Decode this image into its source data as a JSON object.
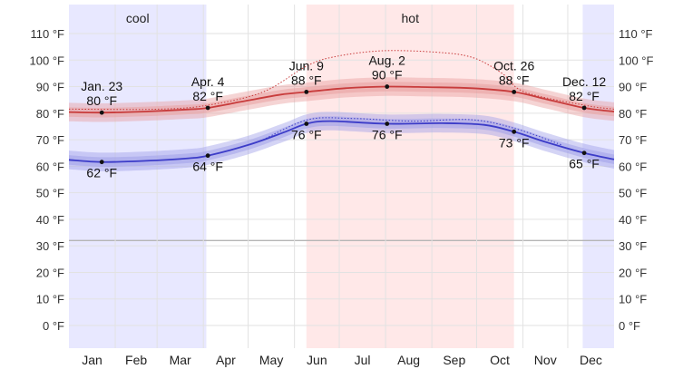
{
  "chart_data": {
    "type": "line",
    "title": "",
    "xlabel": "",
    "ylabel": "",
    "ylim": [
      -10,
      115
    ],
    "y_ticks": [
      0,
      10,
      20,
      30,
      40,
      50,
      60,
      70,
      80,
      90,
      100,
      110
    ],
    "y_unit": "°F",
    "freezing_line": 32,
    "months": [
      "Jan",
      "Feb",
      "Mar",
      "Apr",
      "May",
      "Jun",
      "Jul",
      "Aug",
      "Sep",
      "Oct",
      "Nov",
      "Dec"
    ],
    "grid": true,
    "seasons": [
      {
        "name": "cool",
        "start_day": 0,
        "end_day": 92,
        "color": "#e8e8ff"
      },
      {
        "name": "",
        "start_day": 344,
        "end_day": 365,
        "color": "#e8e8ff"
      },
      {
        "name": "hot",
        "start_day": 159,
        "end_day": 298,
        "color": "#ffe8e8"
      }
    ],
    "series": [
      {
        "name": "",
        "color": "#c83c3c",
        "band_color": "#e8a0a0",
        "points": [
          {
            "day": 0,
            "value": 80.4
          },
          {
            "day": 22,
            "value": 80.2
          },
          {
            "day": 50,
            "value": 80.6
          },
          {
            "day": 80,
            "value": 81.4
          },
          {
            "day": 93,
            "value": 82.0
          },
          {
            "day": 120,
            "value": 84.8
          },
          {
            "day": 142,
            "value": 87.0
          },
          {
            "day": 159,
            "value": 88.0
          },
          {
            "day": 185,
            "value": 89.4
          },
          {
            "day": 213,
            "value": 90.0
          },
          {
            "day": 240,
            "value": 89.8
          },
          {
            "day": 270,
            "value": 89.4
          },
          {
            "day": 298,
            "value": 88.0
          },
          {
            "day": 320,
            "value": 85.2
          },
          {
            "day": 345,
            "value": 82.0
          },
          {
            "day": 365,
            "value": 80.6
          }
        ]
      },
      {
        "name": "",
        "color": "#3c3cc8",
        "band_color": "#a0a0e8",
        "points": [
          {
            "day": 0,
            "value": 62.4
          },
          {
            "day": 22,
            "value": 61.6
          },
          {
            "day": 50,
            "value": 62.0
          },
          {
            "day": 80,
            "value": 63.0
          },
          {
            "day": 93,
            "value": 64.0
          },
          {
            "day": 120,
            "value": 68.0
          },
          {
            "day": 145,
            "value": 73.0
          },
          {
            "day": 159,
            "value": 76.0
          },
          {
            "day": 175,
            "value": 77.0
          },
          {
            "day": 213,
            "value": 76.0
          },
          {
            "day": 250,
            "value": 76.2
          },
          {
            "day": 278,
            "value": 75.6
          },
          {
            "day": 298,
            "value": 73.0
          },
          {
            "day": 320,
            "value": 69.0
          },
          {
            "day": 345,
            "value": 65.0
          },
          {
            "day": 365,
            "value": 62.6
          }
        ]
      }
    ],
    "reference_dotted": [
      {
        "name": "",
        "color": "#c83c3c",
        "points": [
          {
            "day": 0,
            "value": 81.5
          },
          {
            "day": 60,
            "value": 81.5
          },
          {
            "day": 93,
            "value": 83.0
          },
          {
            "day": 130,
            "value": 88.0
          },
          {
            "day": 160,
            "value": 98.0
          },
          {
            "day": 180,
            "value": 101.5
          },
          {
            "day": 210,
            "value": 103.5
          },
          {
            "day": 245,
            "value": 103.0
          },
          {
            "day": 270,
            "value": 101.0
          },
          {
            "day": 290,
            "value": 95.0
          },
          {
            "day": 305,
            "value": 88.0
          },
          {
            "day": 345,
            "value": 83.0
          },
          {
            "day": 365,
            "value": 81.5
          }
        ]
      },
      {
        "name": "",
        "color": "#3c3cc8",
        "points": [
          {
            "day": 130,
            "value": 70.0
          },
          {
            "day": 160,
            "value": 77.5
          },
          {
            "day": 190,
            "value": 78.0
          },
          {
            "day": 230,
            "value": 77.0
          },
          {
            "day": 270,
            "value": 77.5
          },
          {
            "day": 300,
            "value": 74.0
          },
          {
            "day": 330,
            "value": 68.0
          }
        ]
      }
    ],
    "annotations": [
      {
        "day": 22,
        "value": 80.2,
        "date": "Jan. 23",
        "label": "80 °F",
        "pos": "above",
        "color": "#c83c3c"
      },
      {
        "day": 93,
        "value": 82.0,
        "date": "Apr. 4",
        "label": "82 °F",
        "pos": "above",
        "color": "#c83c3c"
      },
      {
        "day": 159,
        "value": 88.0,
        "date": "Jun. 9",
        "label": "88 °F",
        "pos": "above",
        "color": "#c83c3c"
      },
      {
        "day": 213,
        "value": 90.0,
        "date": "Aug. 2",
        "label": "90 °F",
        "pos": "above",
        "color": "#c83c3c"
      },
      {
        "day": 298,
        "value": 88.0,
        "date": "Oct. 26",
        "label": "88 °F",
        "pos": "above",
        "color": "#c83c3c"
      },
      {
        "day": 345,
        "value": 82.0,
        "date": "Dec. 12",
        "label": "82 °F",
        "pos": "above",
        "color": "#c83c3c"
      },
      {
        "day": 22,
        "value": 61.6,
        "date": "",
        "label": "62 °F",
        "pos": "below",
        "color": "#3c3cc8"
      },
      {
        "day": 93,
        "value": 64.0,
        "date": "",
        "label": "64 °F",
        "pos": "below",
        "color": "#3c3cc8"
      },
      {
        "day": 159,
        "value": 76.0,
        "date": "",
        "label": "76 °F",
        "pos": "below",
        "color": "#3c3cc8"
      },
      {
        "day": 213,
        "value": 76.0,
        "date": "",
        "label": "76 °F",
        "pos": "below",
        "color": "#3c3cc8"
      },
      {
        "day": 298,
        "value": 73.0,
        "date": "",
        "label": "73 °F",
        "pos": "below",
        "color": "#3c3cc8"
      },
      {
        "day": 345,
        "value": 65.0,
        "date": "",
        "label": "65 °F",
        "pos": "below",
        "color": "#3c3cc8"
      }
    ]
  }
}
